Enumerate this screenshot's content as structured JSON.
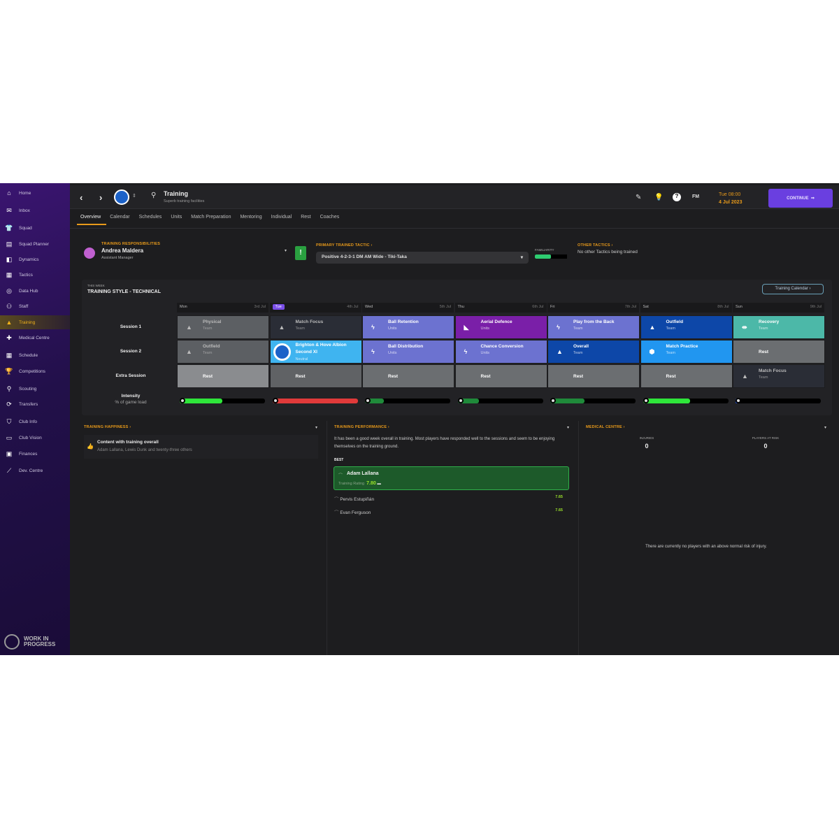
{
  "sidebar": {
    "items": [
      {
        "label": "Home",
        "icon": "home-icon",
        "glyph": "⌂"
      },
      {
        "label": "Inbox",
        "icon": "inbox-icon",
        "glyph": "✉"
      },
      {
        "label": "Squad",
        "icon": "shirt-icon",
        "glyph": "👕"
      },
      {
        "label": "Squad Planner",
        "icon": "clipboard-icon",
        "glyph": "▤"
      },
      {
        "label": "Dynamics",
        "icon": "dynamics-icon",
        "glyph": "◧"
      },
      {
        "label": "Tactics",
        "icon": "tactics-board-icon",
        "glyph": "▦"
      },
      {
        "label": "Data Hub",
        "icon": "data-hub-icon",
        "glyph": "◎"
      },
      {
        "label": "Staff",
        "icon": "staff-icon",
        "glyph": "⚇"
      },
      {
        "label": "Training",
        "icon": "training-cone-icon",
        "glyph": "▲",
        "active": true
      },
      {
        "label": "Medical Centre",
        "icon": "medical-icon",
        "glyph": "✚"
      },
      {
        "label": "Schedule",
        "icon": "calendar-icon",
        "glyph": "▦"
      },
      {
        "label": "Competitions",
        "icon": "trophy-icon",
        "glyph": "🏆"
      },
      {
        "label": "Scouting",
        "icon": "scouting-icon",
        "glyph": "⚲"
      },
      {
        "label": "Transfers",
        "icon": "transfers-icon",
        "glyph": "⟳"
      },
      {
        "label": "Club Info",
        "icon": "shield-icon",
        "glyph": "⛉"
      },
      {
        "label": "Club Vision",
        "icon": "briefcase-icon",
        "glyph": "▭"
      },
      {
        "label": "Finances",
        "icon": "finances-icon",
        "glyph": "▣"
      },
      {
        "label": "Dev. Centre",
        "icon": "dev-centre-icon",
        "glyph": "⟋"
      }
    ],
    "watermark": "WORK IN PROGRESS"
  },
  "header": {
    "title": "Training",
    "subtitle": "Superb training facilities",
    "date_time": "Tue 08:00",
    "date": "4 Jul 2023",
    "continue_label": "CONTINUE",
    "fm_label": "FM"
  },
  "tabs": [
    "Overview",
    "Calendar",
    "Schedules",
    "Units",
    "Match Preparation",
    "Mentoring",
    "Individual",
    "Rest",
    "Coaches"
  ],
  "responsibilities": {
    "heading": "TRAINING RESPONSIBILITIES",
    "name": "Andrea Maldera",
    "role": "Assistant Manager"
  },
  "tactic": {
    "heading": "PRIMARY TRAINED TACTIC ›",
    "value": "Positive 4-2-3-1 DM AM Wide - Tiki-Taka",
    "familiarity_label": "FAMILIARITY",
    "familiarity": 0.5
  },
  "other_tactics": {
    "heading": "OTHER TACTICS ›",
    "text": "No other Tactics being trained"
  },
  "week": {
    "label": "THIS WEEK",
    "style": "TRAINING STYLE - TECHNICAL",
    "calendar_button": "Training Calendar ›",
    "row_labels": [
      "Session 1",
      "Session 2",
      "Extra Session"
    ],
    "intensity_label": "Intensity",
    "intensity_sub": "% of game load",
    "days": [
      {
        "day": "Mon",
        "date": "3rd Jul",
        "intensity": 0.5,
        "intensity_color": "#2ee63a",
        "sessions": [
          {
            "name": "Physical",
            "type": "Team",
            "color": "#5c5f63",
            "icon": "cone-icon"
          },
          {
            "name": "Outfield",
            "type": "Team",
            "color": "#5c5f63",
            "icon": "cone-icon"
          },
          {
            "name": "Rest",
            "color": "#8a8c8f"
          }
        ]
      },
      {
        "day": "Tue",
        "date": "4th Jul",
        "today": true,
        "intensity": 1.0,
        "intensity_color": "#e03a3a",
        "sessions": [
          {
            "name": "Match Focus",
            "type": "Team",
            "color": "#2a2d36",
            "icon": "cone-icon"
          },
          {
            "name": "Brighton & Hove Albion Second XI",
            "type": "Neutral",
            "color": "#3fb4f0",
            "icon": "club-crest-icon"
          },
          {
            "name": "Rest",
            "color": "#606265"
          }
        ]
      },
      {
        "day": "Wed",
        "date": "5th Jul",
        "intensity": 0.22,
        "intensity_color": "#1f8a3a",
        "sessions": [
          {
            "name": "Ball Retention",
            "type": "Units",
            "color": "#6c72d0",
            "icon": "lightning-icon"
          },
          {
            "name": "Ball Distribution",
            "type": "Units",
            "color": "#6c72d0",
            "icon": "lightning-icon"
          },
          {
            "name": "Rest",
            "color": "#6b6e71"
          }
        ]
      },
      {
        "day": "Thu",
        "date": "6th Jul",
        "intensity": 0.25,
        "intensity_color": "#1f8a3a",
        "sessions": [
          {
            "name": "Aerial Defence",
            "type": "Units",
            "color": "#7a1fa8",
            "icon": "aerial-icon"
          },
          {
            "name": "Chance Conversion",
            "type": "Units",
            "color": "#6c72d0",
            "icon": "lightning-icon"
          },
          {
            "name": "Rest",
            "color": "#6b6e71"
          }
        ]
      },
      {
        "day": "Fri",
        "date": "7th Jul",
        "intensity": 0.4,
        "intensity_color": "#1f8a3a",
        "sessions": [
          {
            "name": "Play from the Back",
            "type": "Team",
            "color": "#6c72d0",
            "icon": "lightning-icon"
          },
          {
            "name": "Overall",
            "type": "Team",
            "color": "#0d47a8",
            "icon": "cone-icon"
          },
          {
            "name": "Rest",
            "color": "#6b6e71"
          }
        ]
      },
      {
        "day": "Sat",
        "date": "8th Jul",
        "intensity": 0.55,
        "intensity_color": "#2ee63a",
        "sessions": [
          {
            "name": "Outfield",
            "type": "Team",
            "color": "#0d47a8",
            "icon": "cone-icon"
          },
          {
            "name": "Match Practice",
            "type": "Team",
            "color": "#2196f0",
            "icon": "match-practice-icon"
          },
          {
            "name": "Rest",
            "color": "#6b6e71"
          }
        ]
      },
      {
        "day": "Sun",
        "date": "9th Jul",
        "intensity": 0.03,
        "intensity_color": "#1f4fd0",
        "sessions": [
          {
            "name": "Recovery",
            "type": "Team",
            "color": "#4cb8a8",
            "icon": "recovery-icon"
          },
          {
            "name": "Rest",
            "color": "#6b6e71"
          },
          {
            "name": "Match Focus",
            "type": "Team",
            "color": "#2a2d36",
            "icon": "cone-icon"
          }
        ]
      }
    ]
  },
  "happiness": {
    "heading": "TRAINING HAPPINESS ›",
    "title": "Content with training overall",
    "text": "Adam Lallana, Lewis Dunk and twenty-three others"
  },
  "performance": {
    "heading": "TRAINING PERFORMANCE ›",
    "text": "It has been a good week overall in training. Most players have responded well to the sessions and seem to be enjoying themselves on the training ground.",
    "best_label": "BEST",
    "best": {
      "name": "Adam Lallana",
      "rating_label": "Training Rating",
      "rating": "7.80"
    },
    "others": [
      {
        "name": "Pervis Estupiñán",
        "rating": "7.65"
      },
      {
        "name": "Evan Ferguson",
        "rating": "7.65"
      }
    ]
  },
  "medical": {
    "heading": "MEDICAL CENTRE ›",
    "injuries_label": "INJURIES",
    "injuries": "0",
    "risk_label": "PLAYERS AT RISK",
    "risk": "0",
    "text": "There are currently no players with an above normal risk of injury."
  }
}
